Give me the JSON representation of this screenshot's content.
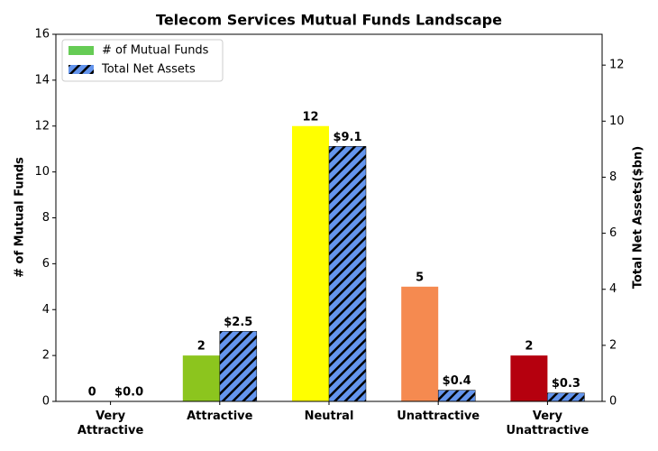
{
  "chart_data": {
    "type": "bar",
    "title": "Telecom Services Mutual Funds Landscape",
    "categories": [
      "Very Attractive",
      "Attractive",
      "Neutral",
      "Unattractive",
      "Very Unattractive"
    ],
    "ylabel": "# of Mutual Funds",
    "y2label": "Total Net Assets($bn)",
    "series": [
      {
        "name": "# of Mutual Funds",
        "color": "#66cc55",
        "colors": [
          "#00a651",
          "#8cc51e",
          "#ffff00",
          "#f58a50",
          "#b5000e"
        ],
        "values": [
          0,
          2,
          12,
          5,
          2
        ]
      },
      {
        "name": "Total Net Assets",
        "color": "#6495ed",
        "hatch": true,
        "axis": "y2",
        "values": [
          0.0,
          2.5,
          9.1,
          0.4,
          0.3
        ],
        "value_labels": [
          "$0.0",
          "$2.5",
          "$9.1",
          "$0.4",
          "$0.3"
        ]
      }
    ],
    "ylim": [
      0,
      16
    ],
    "yticks": [
      0,
      2,
      4,
      6,
      8,
      10,
      12,
      14,
      16
    ],
    "y2lim": [
      0,
      13.1
    ],
    "y2ticks": [
      0,
      2,
      4,
      6,
      8,
      10,
      12
    ],
    "legend": "upper left"
  }
}
